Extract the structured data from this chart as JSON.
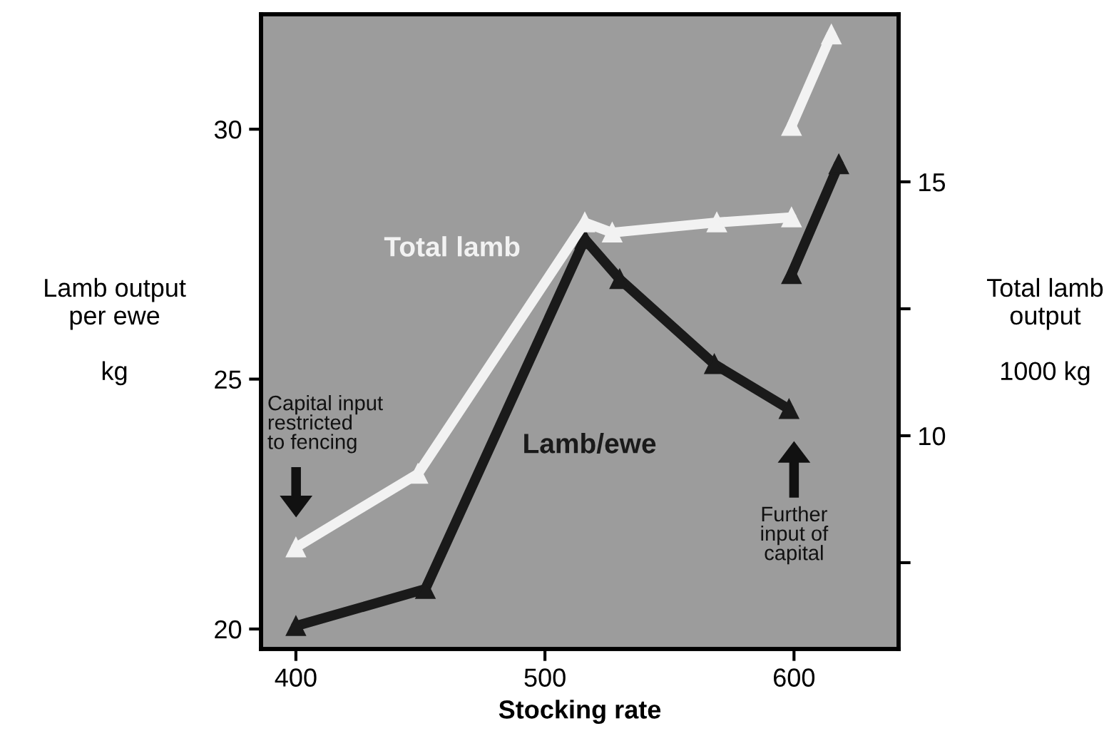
{
  "chart_data": {
    "type": "line",
    "xlabel": "Stocking rate",
    "ylabel": "Lamb output\nper ewe\n\nkg",
    "y2label": "Total lamb\noutput\n\n1000 kg",
    "xlim": [
      386,
      642
    ],
    "xticks": [
      400,
      500,
      600
    ],
    "ylim": [
      19.6,
      32.3
    ],
    "yticks": [
      20,
      25,
      30
    ],
    "y2lim": [
      5.8,
      18.3
    ],
    "y2ticks": [
      {
        "value": 7.5,
        "label": null
      },
      10,
      {
        "value": 12.5,
        "label": null
      },
      15
    ],
    "marker": "triangle",
    "line_style": "solid",
    "grid": false,
    "legend": false,
    "series": [
      {
        "name": "Total lamb",
        "color": "#f2f2f2",
        "axis": "y2",
        "x": [
          400,
          449,
          516,
          527,
          569,
          599
        ],
        "values": [
          7.8,
          9.25,
          14.2,
          14.0,
          14.2,
          14.3
        ]
      },
      {
        "color": "#f2f2f2",
        "axis": "y2",
        "x": [
          599,
          615
        ],
        "values": [
          16.1,
          17.9
        ]
      },
      {
        "name": "Lamb/ewe",
        "color": "#1a1a1a",
        "x": [
          400,
          452,
          516,
          530,
          568,
          598
        ],
        "values": [
          20.06,
          20.8,
          27.8,
          27.0,
          25.3,
          24.4
        ]
      },
      {
        "color": "#1a1a1a",
        "x": [
          599,
          618
        ],
        "values": [
          27.1,
          29.3
        ]
      }
    ],
    "annotations": [
      "Capital input\nrestricted\nto fencing",
      "Further\ninput of\ncapital"
    ]
  }
}
